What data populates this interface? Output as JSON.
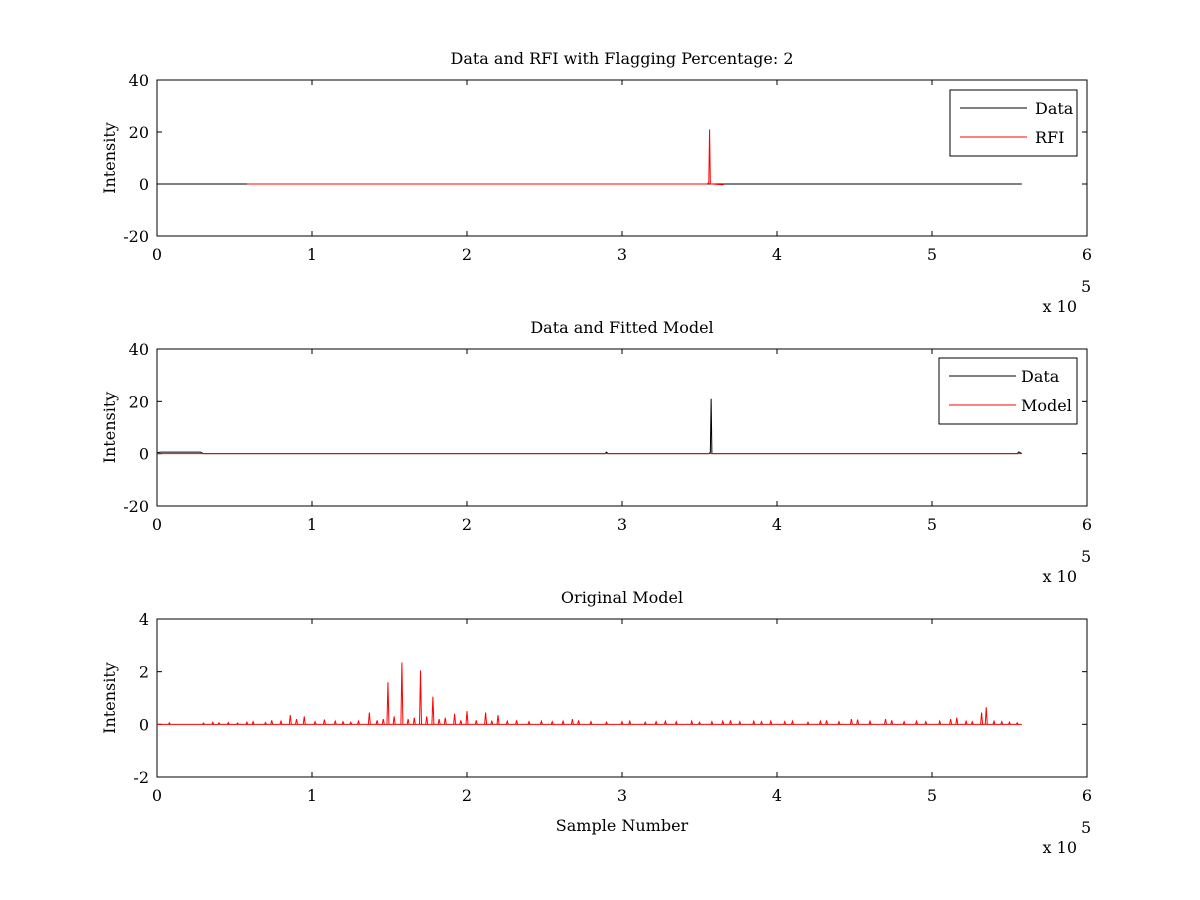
{
  "figure": {
    "background": "#ffffff"
  },
  "colors": {
    "data": "#000000",
    "red": "#ff0000",
    "axis": "#000000"
  },
  "chart_data": [
    {
      "type": "line",
      "title": "Data and RFI with Flagging Percentage: 2",
      "xlabel": "",
      "ylabel": "Intensity",
      "xlim": [
        0,
        6
      ],
      "ylim": [
        -20,
        40
      ],
      "x_ticks": [
        "0",
        "1",
        "2",
        "3",
        "4",
        "5",
        "6"
      ],
      "y_ticks": [
        "-20",
        "0",
        "20",
        "40"
      ],
      "x_multiplier": {
        "base": "x 10",
        "exp": "5"
      },
      "legend": {
        "position": "top-right",
        "entries": [
          "Data",
          "RFI"
        ]
      },
      "series": [
        {
          "name": "Data",
          "color": "#000000",
          "x": [
            0,
            5.58
          ],
          "y": [
            0,
            0
          ]
        },
        {
          "name": "RFI",
          "color": "#ff0000",
          "x": [
            0.58,
            0.59,
            3.55,
            3.56,
            3.565,
            3.57,
            3.58,
            3.65,
            3.66
          ],
          "y": [
            0,
            0,
            0,
            0.5,
            21,
            0,
            0,
            -0.3,
            0
          ]
        }
      ]
    },
    {
      "type": "line",
      "title": "Data and Fitted Model",
      "xlabel": "",
      "ylabel": "Intensity",
      "xlim": [
        0,
        6
      ],
      "ylim": [
        -20,
        40
      ],
      "x_ticks": [
        "0",
        "1",
        "2",
        "3",
        "4",
        "5",
        "6"
      ],
      "y_ticks": [
        "-20",
        "0",
        "20",
        "40"
      ],
      "x_multiplier": {
        "base": "x 10",
        "exp": "5"
      },
      "legend": {
        "position": "top-right",
        "entries": [
          "Data",
          "Model"
        ]
      },
      "series": [
        {
          "name": "Data",
          "color": "#000000",
          "x": [
            0,
            0.02,
            0.28,
            0.3,
            2.89,
            2.9,
            2.91,
            3.56,
            3.57,
            3.575,
            3.58,
            5.55,
            5.56,
            5.58
          ],
          "y": [
            0.3,
            0.6,
            0.6,
            0,
            0,
            0.6,
            0,
            0,
            0.5,
            21,
            0,
            0,
            0.7,
            0
          ]
        },
        {
          "name": "Model",
          "color": "#ff0000",
          "x": [
            0,
            5.58
          ],
          "y": [
            0,
            0
          ]
        }
      ]
    },
    {
      "type": "line",
      "title": "Original Model",
      "xlabel": "Sample Number",
      "ylabel": "Intensity",
      "xlim": [
        0,
        6
      ],
      "ylim": [
        -2,
        4
      ],
      "x_ticks": [
        "0",
        "1",
        "2",
        "3",
        "4",
        "5",
        "6"
      ],
      "y_ticks": [
        "-2",
        "0",
        "2",
        "4"
      ],
      "x_multiplier": {
        "base": "x 10",
        "exp": "5"
      },
      "series": [
        {
          "name": "",
          "color": "#ff0000",
          "baseline": {
            "x": [
              0,
              5.58
            ],
            "y": [
              0,
              0
            ]
          },
          "spikes": [
            [
              0.08,
              0.06
            ],
            [
              0.3,
              0.05
            ],
            [
              0.36,
              0.08
            ],
            [
              0.4,
              0.06
            ],
            [
              0.46,
              0.07
            ],
            [
              0.52,
              0.05
            ],
            [
              0.58,
              0.08
            ],
            [
              0.62,
              0.1
            ],
            [
              0.7,
              0.07
            ],
            [
              0.74,
              0.15
            ],
            [
              0.8,
              0.12
            ],
            [
              0.86,
              0.35
            ],
            [
              0.9,
              0.2
            ],
            [
              0.95,
              0.3
            ],
            [
              1.02,
              0.1
            ],
            [
              1.08,
              0.18
            ],
            [
              1.15,
              0.12
            ],
            [
              1.2,
              0.1
            ],
            [
              1.25,
              0.08
            ],
            [
              1.3,
              0.12
            ],
            [
              1.37,
              0.45
            ],
            [
              1.42,
              0.15
            ],
            [
              1.46,
              0.2
            ],
            [
              1.49,
              1.6
            ],
            [
              1.53,
              0.3
            ],
            [
              1.58,
              2.35
            ],
            [
              1.62,
              0.2
            ],
            [
              1.66,
              0.25
            ],
            [
              1.7,
              2.05
            ],
            [
              1.74,
              0.3
            ],
            [
              1.78,
              1.05
            ],
            [
              1.82,
              0.2
            ],
            [
              1.86,
              0.25
            ],
            [
              1.92,
              0.4
            ],
            [
              1.96,
              0.15
            ],
            [
              2.0,
              0.5
            ],
            [
              2.06,
              0.15
            ],
            [
              2.12,
              0.45
            ],
            [
              2.16,
              0.12
            ],
            [
              2.2,
              0.35
            ],
            [
              2.26,
              0.12
            ],
            [
              2.32,
              0.15
            ],
            [
              2.4,
              0.1
            ],
            [
              2.48,
              0.12
            ],
            [
              2.55,
              0.1
            ],
            [
              2.62,
              0.12
            ],
            [
              2.68,
              0.2
            ],
            [
              2.72,
              0.15
            ],
            [
              2.8,
              0.1
            ],
            [
              2.9,
              0.08
            ],
            [
              3.0,
              0.1
            ],
            [
              3.05,
              0.12
            ],
            [
              3.15,
              0.08
            ],
            [
              3.22,
              0.1
            ],
            [
              3.28,
              0.12
            ],
            [
              3.35,
              0.1
            ],
            [
              3.45,
              0.12
            ],
            [
              3.5,
              0.08
            ],
            [
              3.58,
              0.1
            ],
            [
              3.65,
              0.12
            ],
            [
              3.7,
              0.15
            ],
            [
              3.76,
              0.1
            ],
            [
              3.85,
              0.12
            ],
            [
              3.9,
              0.1
            ],
            [
              3.96,
              0.12
            ],
            [
              4.05,
              0.1
            ],
            [
              4.1,
              0.12
            ],
            [
              4.2,
              0.08
            ],
            [
              4.28,
              0.12
            ],
            [
              4.32,
              0.15
            ],
            [
              4.4,
              0.1
            ],
            [
              4.48,
              0.2
            ],
            [
              4.52,
              0.18
            ],
            [
              4.6,
              0.12
            ],
            [
              4.7,
              0.2
            ],
            [
              4.74,
              0.15
            ],
            [
              4.82,
              0.1
            ],
            [
              4.9,
              0.12
            ],
            [
              4.96,
              0.1
            ],
            [
              5.05,
              0.12
            ],
            [
              5.12,
              0.2
            ],
            [
              5.16,
              0.25
            ],
            [
              5.22,
              0.12
            ],
            [
              5.26,
              0.1
            ],
            [
              5.32,
              0.45
            ],
            [
              5.35,
              0.65
            ],
            [
              5.4,
              0.12
            ],
            [
              5.45,
              0.1
            ],
            [
              5.5,
              0.08
            ],
            [
              5.55,
              0.06
            ]
          ]
        }
      ]
    }
  ]
}
